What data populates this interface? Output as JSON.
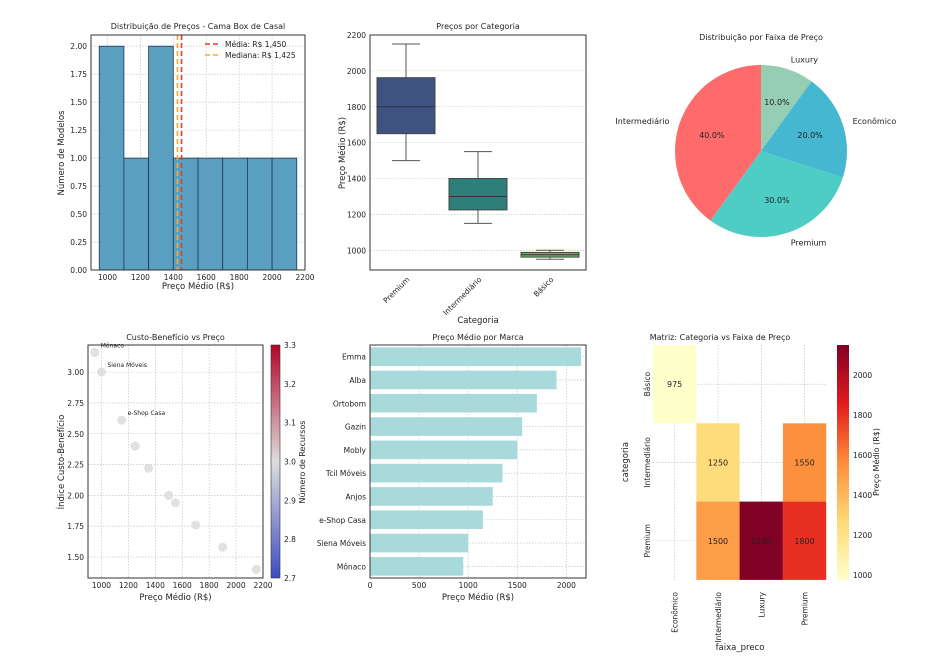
{
  "chart_data": [
    {
      "type": "histogram",
      "title": "Distribuição de Preços - Cama Box de Casal",
      "xlabel": "Preço Médio (R$)",
      "ylabel": "Número de Modelos",
      "bin_edges": [
        950,
        1100,
        1250,
        1400,
        1550,
        1700,
        1850,
        2000,
        2150
      ],
      "counts": [
        2,
        1,
        2,
        1,
        1,
        1,
        1,
        1
      ],
      "xlim": [
        900,
        2200
      ],
      "ylim": [
        0,
        2.1
      ],
      "xticks": [
        1000,
        1200,
        1400,
        1600,
        1800,
        2000,
        2200
      ],
      "yticks": [
        0,
        0.25,
        0.5,
        0.75,
        1.0,
        1.25,
        1.5,
        1.75,
        2.0
      ],
      "bar_color": "#5a9fbf",
      "lines": [
        {
          "label": "Média: R$ 1,450",
          "value": 1450,
          "color": "#e53935"
        },
        {
          "label": "Mediana: R$ 1,425",
          "value": 1425,
          "color": "#ffa726"
        }
      ]
    },
    {
      "type": "box",
      "title": "Preços por Categoria",
      "xlabel": "Categoria",
      "ylabel": "Preço Médio (R$)",
      "ylim": [
        890,
        2200
      ],
      "yticks": [
        1000,
        1200,
        1400,
        1600,
        1800,
        2000,
        2200
      ],
      "boxes": [
        {
          "name": "Premium",
          "min": 1500,
          "q1": 1650,
          "median": 1800,
          "q3": 1962,
          "max": 2150,
          "color": "#3f5383"
        },
        {
          "name": "Intermediário",
          "min": 1150,
          "q1": 1225,
          "median": 1300,
          "q3": 1400,
          "max": 1550,
          "color": "#2d8079"
        },
        {
          "name": "Básico",
          "min": 950,
          "q1": 962,
          "median": 975,
          "q3": 988,
          "max": 1000,
          "color": "#5cba5c"
        }
      ]
    },
    {
      "type": "pie",
      "title": "Distribuição por Faixa de Preço",
      "slices": [
        {
          "label": "Luxury",
          "value": 10,
          "pct": "10.0%",
          "color": "#96ceb4"
        },
        {
          "label": "Econômico",
          "value": 20,
          "pct": "20.0%",
          "color": "#45b7d1"
        },
        {
          "label": "Premium",
          "value": 30,
          "pct": "30.0%",
          "color": "#4ecdc4"
        },
        {
          "label": "Intermediário",
          "value": 40,
          "pct": "40.0%",
          "color": "#ff6b6b"
        }
      ]
    },
    {
      "type": "scatter",
      "title": "Custo-Benefício vs Preço",
      "xlabel": "Preço Médio (R$)",
      "ylabel": "Índice Custo-Benefício",
      "xlim": [
        900,
        2200
      ],
      "ylim": [
        1.33,
        3.22
      ],
      "xticks": [
        1000,
        1200,
        1400,
        1600,
        1800,
        2000,
        2200
      ],
      "yticks": [
        1.5,
        1.75,
        2.0,
        2.25,
        2.5,
        2.75,
        3.0
      ],
      "points": [
        {
          "x": 950,
          "y": 3.16,
          "label": "Mônaco"
        },
        {
          "x": 1000,
          "y": 3.0,
          "label": "Siena Móveis"
        },
        {
          "x": 1150,
          "y": 2.61,
          "label": "e-Shop Casa"
        },
        {
          "x": 1250,
          "y": 2.4
        },
        {
          "x": 1350,
          "y": 2.22
        },
        {
          "x": 1500,
          "y": 2.0
        },
        {
          "x": 1550,
          "y": 1.94
        },
        {
          "x": 1700,
          "y": 1.76
        },
        {
          "x": 1900,
          "y": 1.58
        },
        {
          "x": 2150,
          "y": 1.4
        }
      ],
      "colorbar": {
        "label": "Número de Recursos",
        "range": [
          2.7,
          3.3
        ],
        "ticks": [
          "2.7",
          "2.8",
          "2.9",
          "3.0",
          "3.1",
          "3.2",
          "3.3"
        ]
      }
    },
    {
      "type": "barh",
      "title": "Preço Médio por Marca",
      "xlabel": "Preço Médio (R$)",
      "xlim": [
        0,
        2200
      ],
      "xticks": [
        0,
        500,
        1000,
        1500,
        2000
      ],
      "bar_color": "#a8dadc",
      "categories": [
        "Emma",
        "Alba",
        "Ortobom",
        "Gazin",
        "Mobly",
        "Tcil Móveis",
        "Anjos",
        "e-Shop Casa",
        "Siena Móveis",
        "Mônaco"
      ],
      "values": [
        2150,
        1900,
        1700,
        1550,
        1500,
        1350,
        1250,
        1150,
        1000,
        950
      ]
    },
    {
      "type": "heatmap",
      "title": "Matriz: Categoria vs Faixa de Preço",
      "xlabel": "faixa_preco",
      "ylabel": "categoria",
      "columns": [
        "Econômico",
        "Intermediário",
        "Luxury",
        "Premium"
      ],
      "rows": [
        "Básico",
        "Intermediário",
        "Premium"
      ],
      "values": [
        [
          975,
          null,
          null,
          null
        ],
        [
          null,
          1250,
          null,
          1550
        ],
        [
          null,
          1500,
          2150,
          1800
        ]
      ],
      "colorbar": {
        "label": "Preço Médio (R$)",
        "range": [
          975,
          2150
        ],
        "ticks": [
          "1000",
          "1200",
          "1400",
          "1600",
          "1800",
          "2000"
        ]
      }
    }
  ]
}
